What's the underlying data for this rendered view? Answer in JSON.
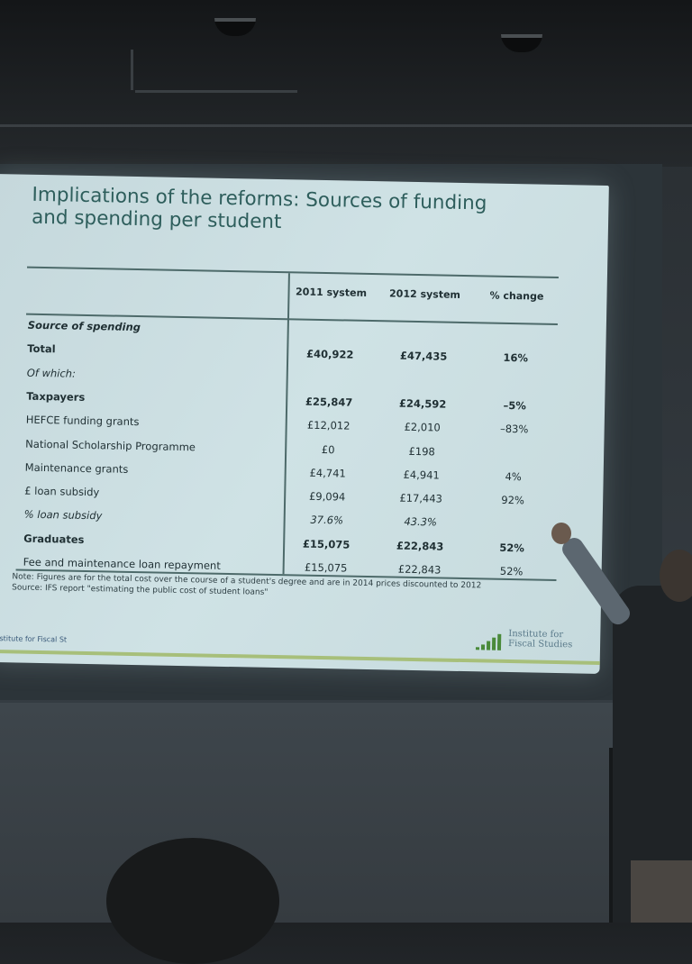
{
  "slide": {
    "title_line1": "Implications of the reforms: Sources of funding",
    "title_line2": "and spending per student",
    "columns": [
      "2011 system",
      "2012 system",
      "% change"
    ],
    "rows": [
      {
        "label": "Source of spending",
        "v2011": "",
        "v2012": "",
        "change": "",
        "style": "bold-italic"
      },
      {
        "label": "Total",
        "v2011": "£40,922",
        "v2012": "£47,435",
        "change": "16%",
        "style": "bold"
      },
      {
        "label": "Of which:",
        "v2011": "",
        "v2012": "",
        "change": "",
        "style": "italic"
      },
      {
        "label": "Taxpayers",
        "v2011": "£25,847",
        "v2012": "£24,592",
        "change": "–5%",
        "style": "bold"
      },
      {
        "label": "HEFCE funding grants",
        "v2011": "£12,012",
        "v2012": "£2,010",
        "change": "–83%",
        "style": "normal"
      },
      {
        "label": "National Scholarship Programme",
        "v2011": "£0",
        "v2012": "£198",
        "change": "",
        "style": "normal"
      },
      {
        "label": "Maintenance grants",
        "v2011": "£4,741",
        "v2012": "£4,941",
        "change": "4%",
        "style": "normal"
      },
      {
        "label": "£ loan subsidy",
        "v2011": "£9,094",
        "v2012": "£17,443",
        "change": "92%",
        "style": "normal"
      },
      {
        "label": "% loan subsidy",
        "v2011": "37.6%",
        "v2012": "43.3%",
        "change": "",
        "style": "italic"
      },
      {
        "label": "Graduates",
        "v2011": "£15,075",
        "v2012": "£22,843",
        "change": "52%",
        "style": "bold"
      },
      {
        "label": "Fee and maintenance loan repayment",
        "v2011": "£15,075",
        "v2012": "£22,843",
        "change": "52%",
        "style": "normal"
      }
    ],
    "note": "Note: Figures are for the total cost over the course of a student's degree and are in 2014 prices discounted to 2012",
    "source": "Source: IFS report \"estimating the public cost of student loans\"",
    "footer": "Institute for Fiscal St",
    "logo_line1": "Institute for",
    "logo_line2": "Fiscal Studies"
  },
  "colors": {
    "title": "#2e5e5c",
    "slide_bg": "#cbdee1",
    "logo_green": "#4a8a3a",
    "footer_bar": "#a7bf7a"
  }
}
